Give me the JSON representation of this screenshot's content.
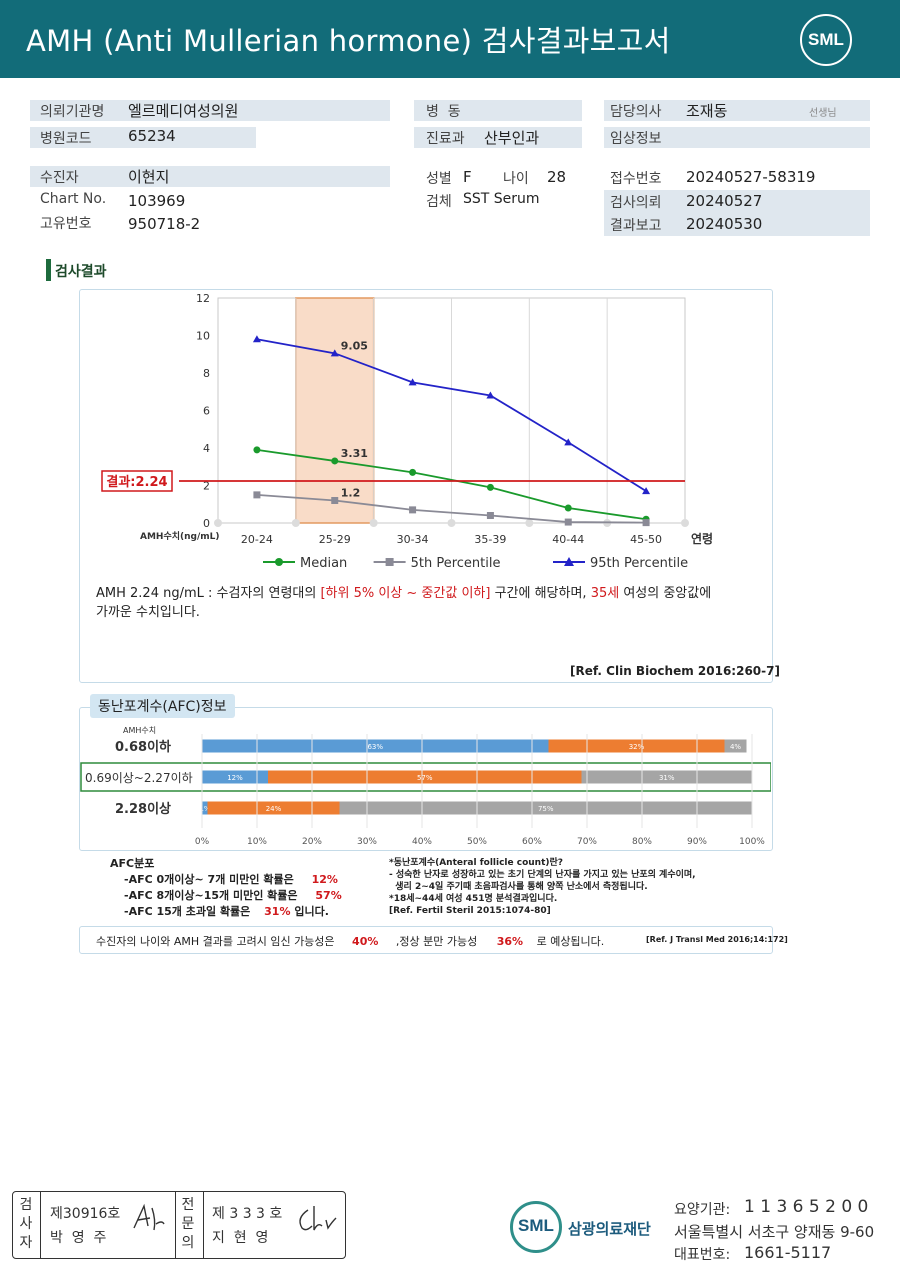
{
  "header": {
    "title": "AMH (Anti Mullerian hormone) 검사결과보고서",
    "logo": "SML"
  },
  "info": {
    "institution_label": "의뢰기관명",
    "institution": "엘르메디여성의원",
    "hospital_code_label": "병원코드",
    "hospital_code": "65234",
    "ward_label": "병  동",
    "ward": "",
    "dept_label": "진료과",
    "dept": "산부인과",
    "doctor_label": "담당의사",
    "doctor": "조재동",
    "doctor_suffix": "선생님",
    "clinical_label": "임상정보",
    "clinical": "",
    "patient_label": "수진자",
    "patient": "이현지",
    "chart_label": "Chart No.",
    "chart": "103969",
    "id_label": "고유번호",
    "id": "950718-2",
    "sex_label": "성별",
    "sex": "F",
    "age_label": "나이",
    "age": "28",
    "specimen_label": "검체",
    "specimen": "SST Serum",
    "receipt_label": "접수번호",
    "receipt": "20240527-58319",
    "request_label": "검사의뢰",
    "request": "20240527",
    "report_label": "결과보고",
    "report": "20240530"
  },
  "section_title": "검사결과",
  "chart_data": {
    "type": "line",
    "categories": [
      "20-24",
      "25-29",
      "30-34",
      "35-39",
      "40-44",
      "45-50"
    ],
    "series": [
      {
        "name": "Median",
        "values": [
          3.9,
          3.31,
          2.7,
          1.9,
          0.8,
          0.2
        ],
        "color": "#1a9a2c"
      },
      {
        "name": "5th Percentile",
        "values": [
          1.5,
          1.2,
          0.7,
          0.4,
          0.05,
          0.02
        ],
        "color": "#8a8a96"
      },
      {
        "name": "95th Percentile",
        "values": [
          9.8,
          9.05,
          7.5,
          6.8,
          4.3,
          1.7
        ],
        "color": "#2323c8"
      }
    ],
    "ylim": [
      0,
      12
    ],
    "yticks": [
      "0",
      "2",
      "4",
      "6",
      "8",
      "10",
      "12"
    ],
    "ylabel": "AMH수치(ng/mL)",
    "xlabel": "연령",
    "highlight_category": "25-29",
    "data_labels": [
      "9.05",
      "3.31",
      "1.2"
    ],
    "result_line": {
      "value": 2.24,
      "label": "결과:2.24",
      "color": "#d0191c"
    }
  },
  "interpretation": {
    "line1_a": "AMH  2.24 ng/mL : 수검자의 연령대의 ",
    "line1_b": "[하위 5% 이상 ~ 중간값 이하]",
    "line1_c": " 구간에 해당하며, ",
    "line1_d": "35세",
    "line1_e": " 여성의 중앙값에",
    "line2": "가까운 수치입니다.",
    "ref": "[Ref. Clin Biochem 2016:260-7]"
  },
  "afc": {
    "title": "동난포계수(AFC)정보",
    "col_header": "AMH수치",
    "rows": [
      {
        "label": "0.68이하",
        "segments": [
          {
            "value": 63,
            "text": "63%",
            "color": "#5a9bd5"
          },
          {
            "value": 32,
            "text": "32%",
            "color": "#ed7d31"
          },
          {
            "value": 4,
            "text": "4%",
            "color": "#a5a5a5"
          }
        ]
      },
      {
        "label": "0.69이상~2.27이하",
        "segments": [
          {
            "value": 12,
            "text": "12%",
            "color": "#5a9bd5"
          },
          {
            "value": 57,
            "text": "57%",
            "color": "#ed7d31"
          },
          {
            "value": 31,
            "text": "31%",
            "color": "#a5a5a5"
          }
        ]
      },
      {
        "label": "2.28이상",
        "segments": [
          {
            "value": 1,
            "text": "1%",
            "color": "#5a9bd5"
          },
          {
            "value": 24,
            "text": "24%",
            "color": "#ed7d31"
          },
          {
            "value": 75,
            "text": "75%",
            "color": "#a5a5a5"
          }
        ]
      }
    ],
    "axis": [
      "0%",
      "10%",
      "20%",
      "30%",
      "40%",
      "50%",
      "60%",
      "70%",
      "80%",
      "90%",
      "100%"
    ],
    "dist_title": "AFC분포",
    "dist": [
      {
        "text": "-AFC  0개이상~ 7개 미만인 확률은",
        "pct": "12%"
      },
      {
        "text": "-AFC  8개이상~15개 미만인 확률은",
        "pct": "57%"
      },
      {
        "text": "-AFC  15개 초과일 확률은",
        "pct": "31%",
        "suffix": "입니다."
      }
    ],
    "note1": "*동난포계수(Anteral  follicle  count)란?",
    "note2": "- 성숙한 난자로 성장하고 있는 초기 단계의 난자를 가지고 있는 난포의 계수이며,",
    "note3": "  생리 2~4일 주기때 초음파검사를 통해 양쪽 난소에서 측정됩니다.",
    "note4": "*18세~44세 여성 451명 분석결과입니다.",
    "note5": "[Ref. Fertil Steril 2015:1074-80]"
  },
  "pregnancy": {
    "a": "수진자의  나이와 AMH 결과를 고려시 임신 가능성은",
    "pct1": "40%",
    "b": ",정상 분만 가능성",
    "pct2": "36%",
    "c": "로 예상됩니다.",
    "ref": "[Ref. J Transl Med 2016;14:172]"
  },
  "footer": {
    "box1_label": "검사자",
    "box1_line1": "제30916호",
    "box1_line2": "박  영  주",
    "box2_label": "전문의",
    "box2_line1": "제 3 3 3 호",
    "box2_line2": "지  현  영",
    "org_logo": "SML",
    "org_name": "삼광의료재단",
    "code_label": "요양기관:",
    "code": "1 1 3 6 5 2 0 0",
    "address": "서울특별시 서초구 양재동 9-60",
    "phone_label": "대표번호:",
    "phone": "1661-5117"
  }
}
